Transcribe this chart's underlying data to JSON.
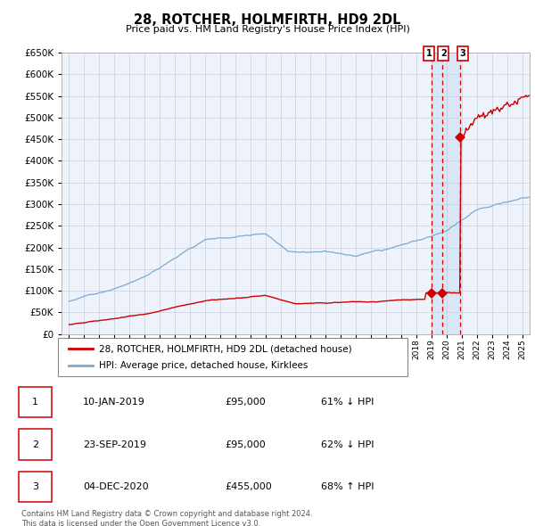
{
  "title": "28, ROTCHER, HOLMFIRTH, HD9 2DL",
  "subtitle": "Price paid vs. HM Land Registry's House Price Index (HPI)",
  "legend_label_red": "28, ROTCHER, HOLMFIRTH, HD9 2DL (detached house)",
  "legend_label_blue": "HPI: Average price, detached house, Kirklees",
  "footer1": "Contains HM Land Registry data © Crown copyright and database right 2024.",
  "footer2": "This data is licensed under the Open Government Licence v3.0.",
  "table": [
    [
      "1",
      "10-JAN-2019",
      "£95,000",
      "61% ↓ HPI"
    ],
    [
      "2",
      "23-SEP-2019",
      "£95,000",
      "62% ↓ HPI"
    ],
    [
      "3",
      "04-DEC-2020",
      "£455,000",
      "68% ↑ HPI"
    ]
  ],
  "transactions": [
    {
      "date_num": 2019.03,
      "price": 95000
    },
    {
      "date_num": 2019.73,
      "price": 95000
    },
    {
      "date_num": 2020.92,
      "price": 455000
    }
  ],
  "vlines": [
    2019.03,
    2019.73,
    2020.92
  ],
  "shade_start": 2019.03,
  "shade_end": 2020.92,
  "ylim": [
    0,
    650000
  ],
  "xlim_start": 1994.5,
  "xlim_end": 2025.5,
  "background_color": "#ffffff",
  "plot_bg_color": "#eef2fa",
  "grid_color": "#c8cfe0",
  "red_color": "#cc0000",
  "blue_color": "#7aaad0",
  "shade_color": "#d8e6f5"
}
